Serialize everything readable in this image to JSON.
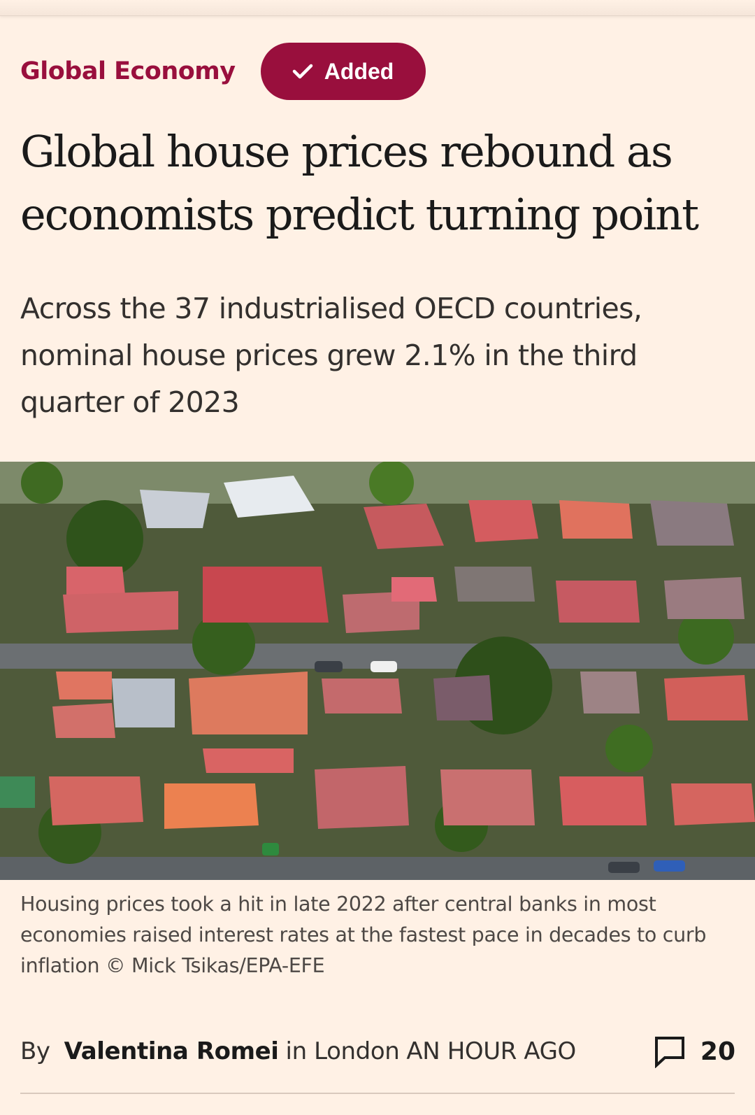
{
  "article": {
    "topic": "Global Economy",
    "follow_button_label": "Added",
    "headline": "Global house prices rebound as economists predict turning point",
    "standfirst": "Across the 37 industrialised OECD countries, nominal house prices grew 2.1% in the third quarter of 2023",
    "caption": "Housing prices took a hit in late 2022 after central banks in most economies raised interest rates at the fastest pace in decades to curb inflation © Mick Tsikas/EPA-EFE",
    "byline": {
      "prefix": "By",
      "author": "Valentina Romei",
      "location": "in London",
      "time": "AN HOUR AGO"
    },
    "comment_count": "20"
  },
  "icons": {
    "follow": "check-icon",
    "comments": "speech-bubble-icon"
  },
  "colors": {
    "background": "#fff1e5",
    "accent": "#990f3d"
  }
}
